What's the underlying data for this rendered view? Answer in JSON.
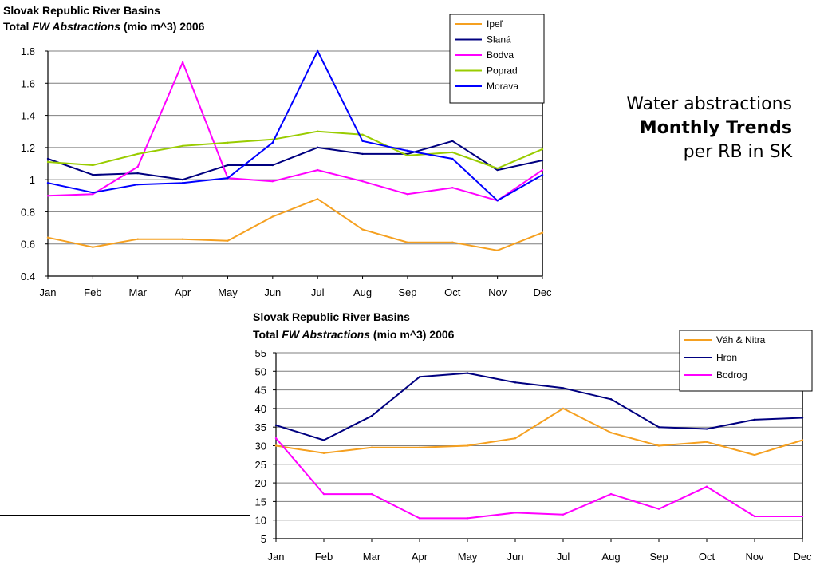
{
  "side_text": {
    "line1": "Water abstractions",
    "line2": "Monthly Trends",
    "line3": "per RB in SK"
  },
  "chart_data": [
    {
      "type": "line",
      "title_line1": "Slovak Republic River Basins",
      "title_line2_a": "Total ",
      "title_line2_b": "FW Abstractions",
      "title_line2_c": " (mio m^3) 2006",
      "categories": [
        "Jan",
        "Feb",
        "Mar",
        "Apr",
        "May",
        "Jun",
        "Jul",
        "Aug",
        "Sep",
        "Oct",
        "Nov",
        "Dec"
      ],
      "ylim": [
        0.4,
        1.8
      ],
      "yticks": [
        0.4,
        0.6,
        0.8,
        1,
        1.2,
        1.4,
        1.6,
        1.8
      ],
      "grid": true,
      "legend_position": "top-right",
      "series": [
        {
          "name": "Ipeľ",
          "color": "#f5a020",
          "values": [
            0.64,
            0.58,
            0.63,
            0.63,
            0.62,
            0.77,
            0.88,
            0.69,
            0.61,
            0.61,
            0.56,
            0.67
          ]
        },
        {
          "name": "Slaná",
          "color": "#000080",
          "values": [
            1.13,
            1.03,
            1.04,
            1.0,
            1.09,
            1.09,
            1.2,
            1.16,
            1.16,
            1.24,
            1.06,
            1.12
          ]
        },
        {
          "name": "Bodva",
          "color": "#ff00ff",
          "values": [
            0.9,
            0.91,
            1.08,
            1.73,
            1.01,
            0.99,
            1.06,
            0.99,
            0.91,
            0.95,
            0.87,
            1.06
          ]
        },
        {
          "name": "Poprad",
          "color": "#99cc00",
          "values": [
            1.11,
            1.09,
            1.16,
            1.21,
            1.23,
            1.25,
            1.3,
            1.28,
            1.15,
            1.17,
            1.07,
            1.19
          ]
        },
        {
          "name": "Morava",
          "color": "#0000ff",
          "values": [
            0.98,
            0.92,
            0.97,
            0.98,
            1.01,
            1.23,
            1.8,
            1.24,
            1.18,
            1.13,
            0.87,
            1.03
          ]
        }
      ]
    },
    {
      "type": "line",
      "title_line1": "Slovak Republic River Basins",
      "title_line2_a": "Total ",
      "title_line2_b": "FW Abstractions",
      "title_line2_c": " (mio m^3) 2006",
      "categories": [
        "Jan",
        "Feb",
        "Mar",
        "Apr",
        "May",
        "Jun",
        "Jul",
        "Aug",
        "Sep",
        "Oct",
        "Nov",
        "Dec"
      ],
      "ylim": [
        5,
        55
      ],
      "yticks": [
        5,
        10,
        15,
        20,
        25,
        30,
        35,
        40,
        45,
        50,
        55
      ],
      "grid": true,
      "legend_position": "top-right",
      "series": [
        {
          "name": "Váh & Nitra",
          "color": "#f5a020",
          "values": [
            30.0,
            28.0,
            29.5,
            29.5,
            30.0,
            32.0,
            40.0,
            33.5,
            30.0,
            31.0,
            27.5,
            31.5
          ]
        },
        {
          "name": "Hron",
          "color": "#000080",
          "values": [
            35.5,
            31.5,
            38.0,
            48.5,
            49.5,
            47.0,
            45.5,
            42.5,
            35.0,
            34.5,
            37.0,
            37.5
          ]
        },
        {
          "name": "Bodrog",
          "color": "#ff00ff",
          "values": [
            32.0,
            17.0,
            17.0,
            10.5,
            10.5,
            12.0,
            11.5,
            17.0,
            13.0,
            19.0,
            11.0,
            11.0
          ]
        }
      ]
    }
  ]
}
